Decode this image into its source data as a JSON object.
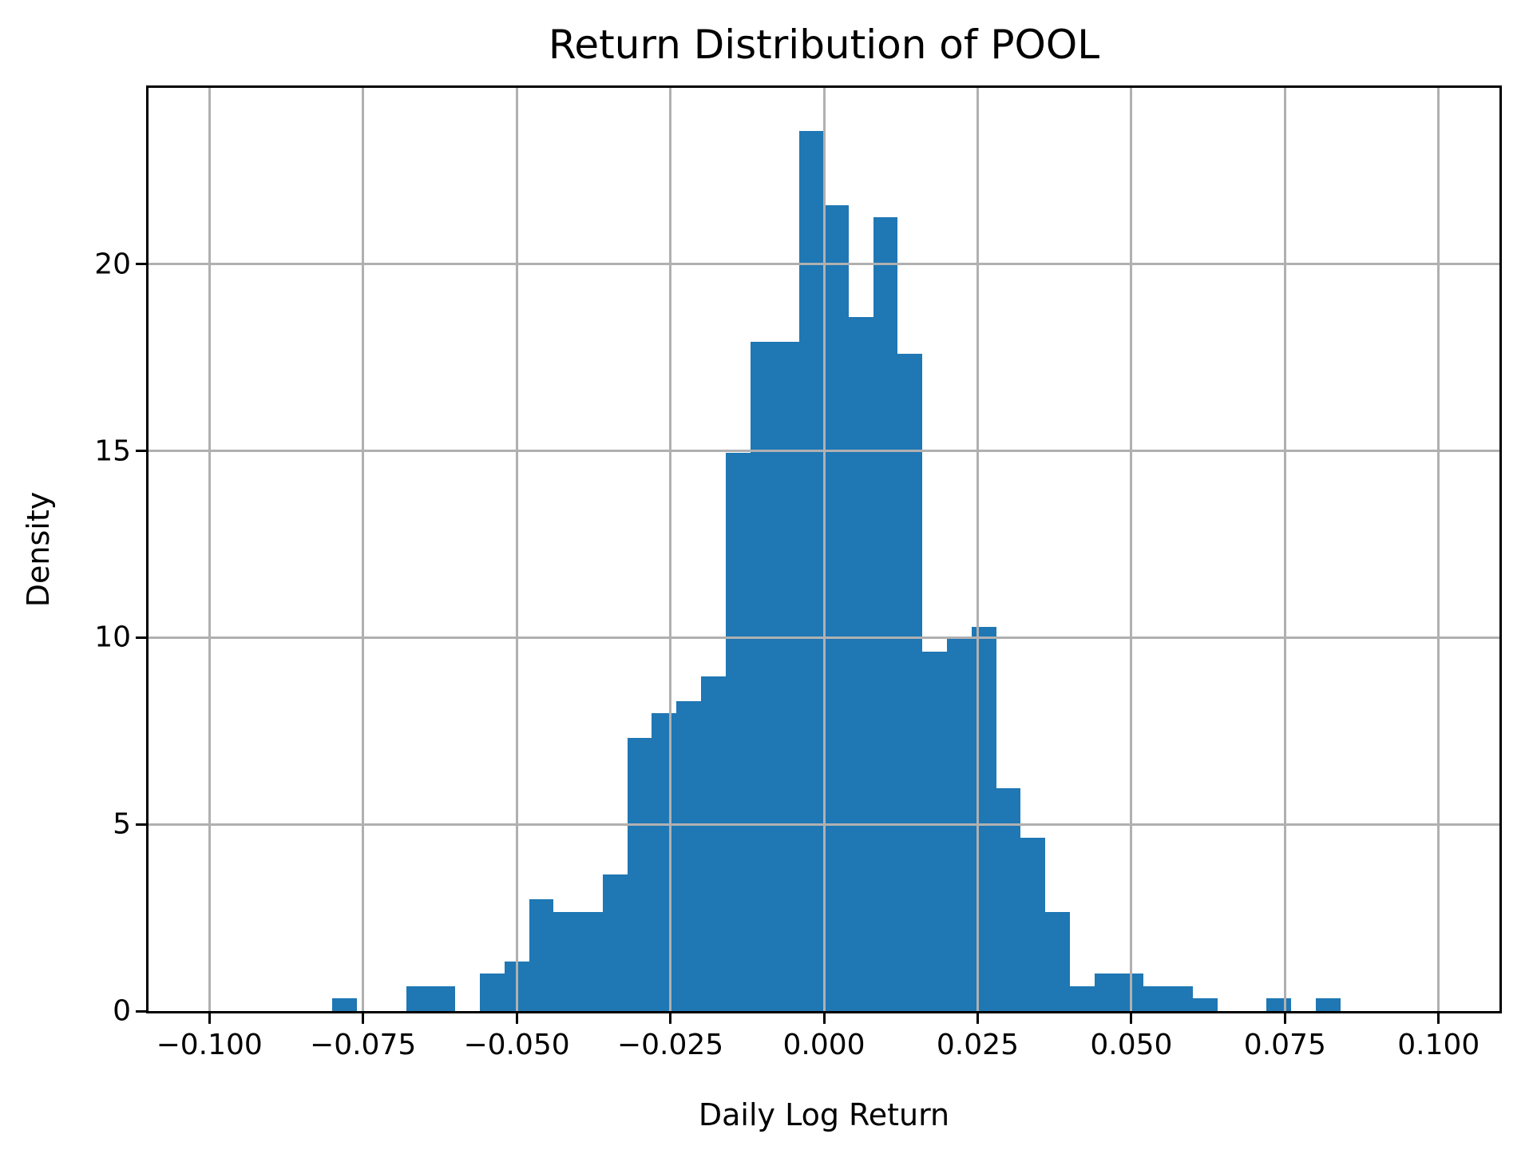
{
  "figure": {
    "title": "Return Distribution of POOL",
    "xlabel": "Daily Log Return",
    "ylabel": "Density"
  },
  "chart_data": {
    "type": "bar",
    "subtype": "histogram",
    "title": "Return Distribution of POOL",
    "xlabel": "Daily Log Return",
    "ylabel": "Density",
    "grid": true,
    "grid_above_bars": true,
    "legend": false,
    "bar_color": "#1f77b4",
    "grid_color": "#b0b0b0",
    "spine_color": "#000000",
    "bin_start": -0.08,
    "bin_width": 0.004,
    "n_observations": 753,
    "counts": [
      1,
      0,
      0,
      2,
      2,
      0,
      3,
      4,
      9,
      8,
      8,
      11,
      22,
      24,
      25,
      27,
      45,
      54,
      54,
      71,
      65,
      56,
      64,
      53,
      29,
      30,
      31,
      18,
      14,
      8,
      2,
      3,
      3,
      2,
      2,
      1,
      0,
      0,
      1,
      0,
      1
    ],
    "densities": [
      0.332,
      0,
      0,
      0.664,
      0.664,
      0,
      0.996,
      1.328,
      2.988,
      2.656,
      2.656,
      3.652,
      7.304,
      7.968,
      8.3,
      8.964,
      14.94,
      17.928,
      17.928,
      23.572,
      21.58,
      18.592,
      21.248,
      17.596,
      9.628,
      9.96,
      10.292,
      5.976,
      4.648,
      2.656,
      0.664,
      0.996,
      0.996,
      0.664,
      0.664,
      0.332,
      0,
      0,
      0.332,
      0,
      0.332
    ],
    "xlim": [
      -0.1099,
      0.1099
    ],
    "ylim": [
      0,
      24.72
    ],
    "x_ticks": [
      {
        "value": -0.1,
        "label": "−0.100"
      },
      {
        "value": -0.075,
        "label": "−0.075"
      },
      {
        "value": -0.05,
        "label": "−0.050"
      },
      {
        "value": -0.025,
        "label": "−0.025"
      },
      {
        "value": 0.0,
        "label": "0.000"
      },
      {
        "value": 0.025,
        "label": "0.025"
      },
      {
        "value": 0.05,
        "label": "0.050"
      },
      {
        "value": 0.075,
        "label": "0.075"
      },
      {
        "value": 0.1,
        "label": "0.100"
      }
    ],
    "y_ticks": [
      {
        "value": 0,
        "label": "0"
      },
      {
        "value": 5,
        "label": "5"
      },
      {
        "value": 10,
        "label": "10"
      },
      {
        "value": 15,
        "label": "15"
      },
      {
        "value": 20,
        "label": "20"
      }
    ]
  }
}
